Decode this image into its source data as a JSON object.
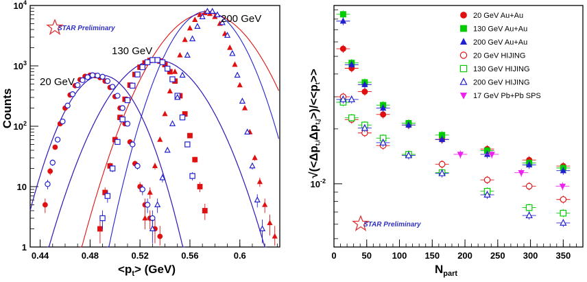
{
  "colors": {
    "red": "#e01010",
    "blue": "#2020d0",
    "green": "#00cc00",
    "magenta": "#ee22ee",
    "star_outline": "#e03030",
    "prelim": "#3030c0"
  },
  "chart_data": [
    {
      "type": "scatter",
      "title": "",
      "xlabel": "<pt> (GeV)",
      "ylabel": "Counts",
      "xlim": [
        0.432,
        0.632
      ],
      "ylim": [
        1,
        10000
      ],
      "yscale": "log",
      "xticks": [
        "0.44",
        "0.48",
        "0.52",
        "0.56",
        "0.6"
      ],
      "yticks": [
        "1",
        "10",
        "10",
        "10",
        "10"
      ],
      "ytick_exponents": [
        "",
        "",
        "2",
        "3",
        "4"
      ],
      "annotations": [
        "20 GeV",
        "130 GeV",
        "200 GeV"
      ],
      "watermark": "STAR Preliminary",
      "series": [
        {
          "name": "20 GeV data",
          "marker": "filled-circle",
          "color": "red",
          "mean": 0.4895,
          "sigma": 0.0179,
          "peak": 700,
          "x": [
            0.444,
            0.448,
            0.452,
            0.456,
            0.46,
            0.464,
            0.468,
            0.472,
            0.476,
            0.48,
            0.484,
            0.488,
            0.492,
            0.496,
            0.5,
            0.504,
            0.508,
            0.512,
            0.516,
            0.52,
            0.524,
            0.528,
            0.532,
            0.536
          ],
          "y": [
            5,
            18,
            45,
            110,
            200,
            330,
            470,
            590,
            670,
            700,
            690,
            640,
            560,
            440,
            310,
            200,
            110,
            55,
            24,
            10,
            5,
            3,
            2,
            1.5
          ]
        },
        {
          "name": "20 GeV HIJING",
          "marker": "open-circle",
          "color": "blue",
          "mean": 0.4895,
          "sigma": 0.0179,
          "peak": 700,
          "x": [
            0.446,
            0.45,
            0.454,
            0.458,
            0.462,
            0.466,
            0.47,
            0.474,
            0.478,
            0.482,
            0.486,
            0.49,
            0.494,
            0.498,
            0.502,
            0.506,
            0.51,
            0.514,
            0.518,
            0.522,
            0.526,
            0.53
          ],
          "y": [
            11,
            25,
            60,
            120,
            220,
            340,
            480,
            580,
            650,
            700,
            690,
            660,
            560,
            450,
            320,
            200,
            110,
            50,
            22,
            9,
            5,
            3
          ]
        },
        {
          "name": "130 GeV data",
          "marker": "filled-square",
          "color": "red",
          "mean": 0.5335,
          "sigma": 0.0229,
          "peak": 1250,
          "x": [
            0.488,
            0.492,
            0.496,
            0.5,
            0.504,
            0.508,
            0.512,
            0.516,
            0.52,
            0.524,
            0.528,
            0.532,
            0.536,
            0.54,
            0.544,
            0.548,
            0.552,
            0.556,
            0.56,
            0.564,
            0.568,
            0.572
          ],
          "y": [
            2,
            8,
            22,
            60,
            140,
            280,
            480,
            720,
            950,
            1120,
            1230,
            1250,
            1200,
            1050,
            800,
            560,
            320,
            160,
            70,
            28,
            10,
            4
          ]
        },
        {
          "name": "130 GeV HIJING",
          "marker": "open-square",
          "color": "blue",
          "mean": 0.5335,
          "sigma": 0.0229,
          "peak": 1250,
          "x": [
            0.49,
            0.494,
            0.498,
            0.502,
            0.506,
            0.51,
            0.514,
            0.518,
            0.522,
            0.526,
            0.53,
            0.534,
            0.538,
            0.542,
            0.546,
            0.55,
            0.554,
            0.558,
            0.562
          ],
          "y": [
            3,
            7,
            20,
            55,
            130,
            270,
            470,
            720,
            950,
            1150,
            1250,
            1250,
            1150,
            900,
            600,
            320,
            140,
            50,
            15
          ]
        },
        {
          "name": "200 GeV data",
          "marker": "filled-triangle",
          "color": "red",
          "mean": 0.5735,
          "sigma": 0.0237,
          "peak": 7500,
          "x": [
            0.524,
            0.528,
            0.532,
            0.536,
            0.54,
            0.544,
            0.548,
            0.552,
            0.556,
            0.56,
            0.564,
            0.568,
            0.572,
            0.576,
            0.58,
            0.584,
            0.588,
            0.592,
            0.596,
            0.6,
            0.604,
            0.608,
            0.612,
            0.616,
            0.62,
            0.624,
            0.628
          ],
          "y": [
            3,
            8,
            22,
            60,
            160,
            380,
            800,
            1500,
            2700,
            4200,
            5800,
            7000,
            7500,
            7300,
            6500,
            5000,
            3400,
            2000,
            1050,
            480,
            200,
            80,
            30,
            12,
            5,
            2.5,
            1.5
          ]
        },
        {
          "name": "200 GeV HIJING",
          "marker": "open-triangle",
          "color": "blue",
          "mean": 0.5735,
          "sigma": 0.0185,
          "peak": 8000,
          "x": [
            0.53,
            0.534,
            0.538,
            0.542,
            0.546,
            0.55,
            0.554,
            0.558,
            0.562,
            0.566,
            0.57,
            0.574,
            0.578,
            0.582,
            0.586,
            0.59,
            0.594,
            0.598,
            0.602,
            0.606,
            0.61,
            0.614,
            0.618
          ],
          "y": [
            2,
            5,
            14,
            40,
            110,
            300,
            700,
            1500,
            2800,
            4500,
            6500,
            8000,
            8000,
            7000,
            5200,
            3200,
            1600,
            700,
            260,
            80,
            22,
            6,
            2
          ]
        }
      ]
    },
    {
      "type": "scatter",
      "title": "",
      "xlabel": "N_part",
      "ylabel": "sqrt(<Δp_t,i Δp_t,j>)/<<p_t>>",
      "xlim": [
        0,
        380
      ],
      "ylim": [
        0.0045,
        0.095
      ],
      "yscale": "log",
      "xticks": [
        "0",
        "50",
        "100",
        "150",
        "200",
        "250",
        "300",
        "350"
      ],
      "yticks": [
        "10"
      ],
      "ytick_exponents": [
        "-2"
      ],
      "watermark": "STAR Preliminary",
      "legend_position": "top-right",
      "series": [
        {
          "name": "20 GeV Au+Au",
          "marker": "filled-circle",
          "color": "red",
          "x": [
            14,
            27,
            47,
            75,
            114,
            165,
            234,
            298,
            350
          ],
          "y": [
            0.055,
            0.043,
            0.032,
            0.024,
            0.021,
            0.0175,
            0.0155,
            0.0135,
            0.0125
          ]
        },
        {
          "name": "130 GeV Au+Au",
          "marker": "filled-square",
          "color": "green",
          "x": [
            14,
            27,
            47,
            75,
            114,
            165,
            234,
            298,
            350
          ],
          "y": [
            0.085,
            0.046,
            0.036,
            0.027,
            0.0215,
            0.0185,
            0.0152,
            0.013,
            0.0122
          ]
        },
        {
          "name": "200 GeV Au+Au",
          "marker": "filled-triangle",
          "color": "blue",
          "x": [
            14,
            27,
            47,
            75,
            114,
            165,
            234,
            298,
            350
          ],
          "y": [
            0.078,
            0.045,
            0.035,
            0.026,
            0.021,
            0.0175,
            0.0145,
            0.0127,
            0.0118
          ]
        },
        {
          "name": "20 GeV HIJING",
          "marker": "open-circle",
          "color": "red",
          "x": [
            14,
            27,
            47,
            75,
            114,
            165,
            234,
            298,
            350
          ],
          "y": [
            0.03,
            0.0225,
            0.019,
            0.0162,
            0.0145,
            0.0128,
            0.0105,
            0.0097,
            0.0082
          ]
        },
        {
          "name": "130 GeV HIJING",
          "marker": "open-square",
          "color": "green",
          "x": [
            14,
            27,
            47,
            75,
            114,
            165,
            234,
            298,
            350
          ],
          "y": [
            0.028,
            0.023,
            0.021,
            0.0178,
            0.0145,
            0.0115,
            0.0091,
            0.0074,
            0.0069
          ]
        },
        {
          "name": "200 GeV HIJING",
          "marker": "open-triangle",
          "color": "blue",
          "x": [
            14,
            27,
            47,
            75,
            114,
            165,
            234,
            298,
            350
          ],
          "y": [
            0.029,
            0.029,
            0.0202,
            0.0168,
            0.0143,
            0.0114,
            0.0087,
            0.0067,
            0.0061
          ]
        },
        {
          "name": "17 GeV Pb+Pb SPS",
          "marker": "filled-down-triangle",
          "color": "magenta",
          "x": [
            193,
            241,
            286,
            349
          ],
          "y": [
            0.0145,
            0.0145,
            0.0115,
            0.0097
          ]
        }
      ]
    }
  ]
}
